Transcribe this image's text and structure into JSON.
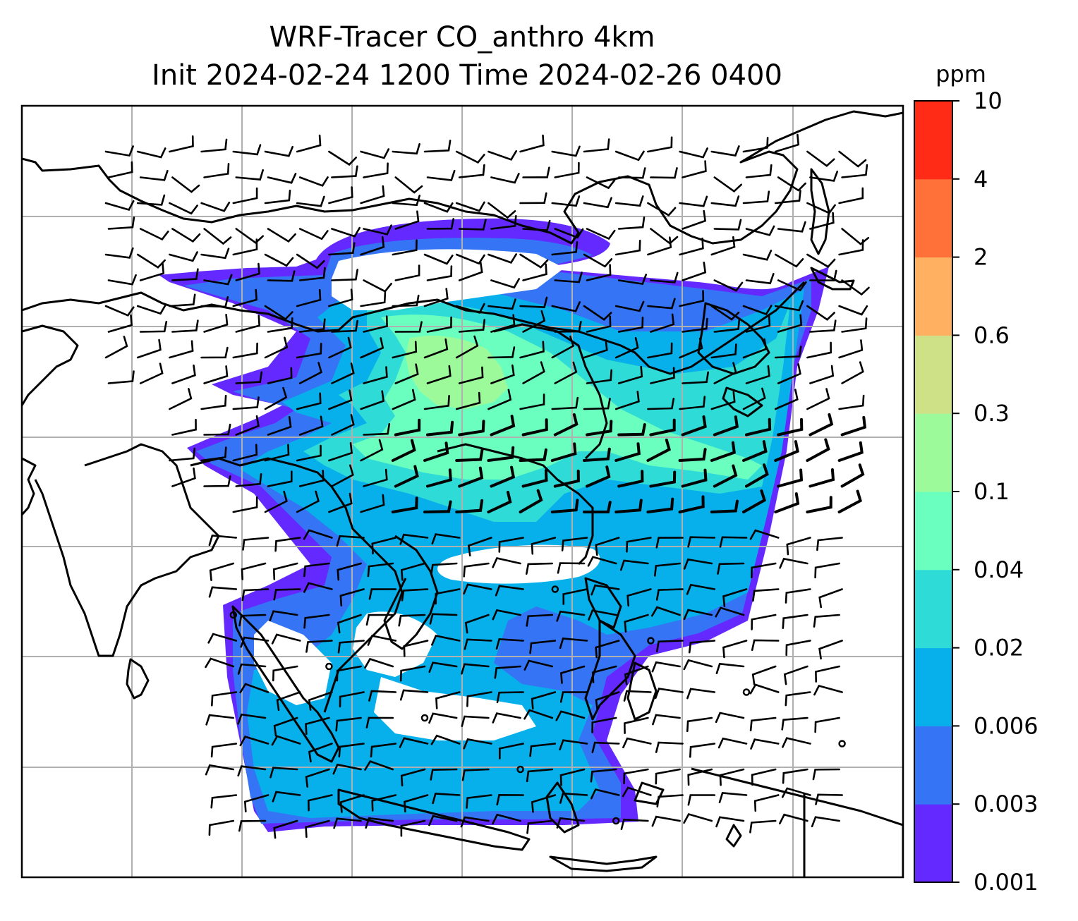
{
  "title": {
    "line1": "WRF-Tracer CO_anthro 4km",
    "line2": "Init 2024-02-24 1200 Time 2024-02-26 0400"
  },
  "colorbar": {
    "unit": "ppm",
    "levels": [
      "0.001",
      "0.003",
      "0.006",
      "0.02",
      "0.04",
      "0.1",
      "0.3",
      "0.6",
      "2",
      "4",
      "10"
    ],
    "colors": [
      "#6329ff",
      "#3574f5",
      "#07b0ea",
      "#2fdbd6",
      "#6affbf",
      "#9cfa9a",
      "#cfe187",
      "#ffb060",
      "#ff7139",
      "#ff2b16"
    ]
  },
  "map": {
    "background": "#ffffff",
    "gridline_color": "#b0b0b0",
    "coastline_color": "#000000",
    "barb_color": "#000000",
    "calm_marker": "circle"
  },
  "chart_data": {
    "type": "heatmap",
    "variable": "CO_anthro",
    "unit": "ppm",
    "color_levels": [
      0.001,
      0.003,
      0.006,
      0.02,
      0.04,
      0.1,
      0.3,
      0.6,
      2,
      4,
      10
    ],
    "overlay": "wind barbs",
    "gridlines": true
  }
}
